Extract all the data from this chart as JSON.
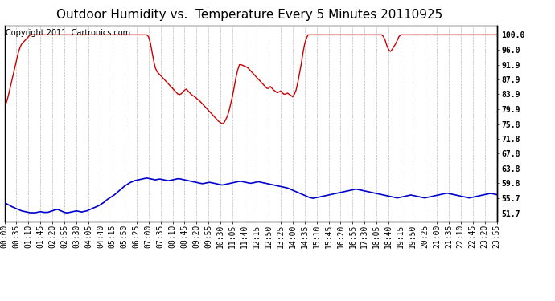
{
  "title": "Outdoor Humidity vs.  Temperature Every 5 Minutes 20110925",
  "copyright": "Copyright 2011  Cartronics.com",
  "yticks": [
    51.7,
    55.7,
    59.8,
    63.8,
    67.8,
    71.8,
    75.8,
    79.9,
    83.9,
    87.9,
    91.9,
    96.0,
    100.0
  ],
  "ytick_labels": [
    "51.7",
    "55.7",
    "59.8",
    "63.8",
    "67.8",
    "71.8",
    "75.8",
    "79.9",
    "83.9",
    "87.9",
    "91.9",
    "96.0",
    "100.0"
  ],
  "ylim_min": 49.5,
  "ylim_max": 102.5,
  "red_color": "#cc0000",
  "blue_color": "#0000cc",
  "bg_color": "#ffffff",
  "grid_color": "#aaaaaa",
  "title_fontsize": 11,
  "copyright_fontsize": 7,
  "tick_fontsize": 7,
  "axis_tick_fontsize": 7,
  "humidity_data": [
    80.0,
    81.5,
    83.0,
    85.0,
    87.0,
    89.0,
    91.0,
    93.0,
    95.0,
    96.5,
    97.5,
    98.0,
    98.5,
    99.0,
    99.5,
    100.0,
    100.0,
    100.0,
    100.0,
    100.0,
    100.0,
    100.0,
    100.0,
    100.0,
    100.0,
    100.0,
    100.0,
    100.0,
    100.0,
    100.0,
    100.0,
    100.0,
    100.0,
    100.0,
    100.0,
    100.0,
    100.0,
    100.0,
    100.0,
    100.0,
    100.0,
    100.0,
    100.0,
    100.0,
    100.0,
    100.0,
    100.0,
    100.0,
    100.0,
    100.0,
    100.0,
    100.0,
    100.0,
    100.0,
    100.0,
    100.0,
    100.0,
    100.0,
    100.0,
    100.0,
    100.0,
    100.0,
    100.0,
    100.0,
    100.0,
    100.0,
    100.0,
    100.0,
    100.0,
    100.0,
    100.0,
    100.0,
    100.0,
    100.0,
    100.0,
    100.0,
    100.0,
    100.0,
    100.0,
    100.0,
    100.0,
    100.0,
    100.0,
    100.0,
    99.5,
    98.0,
    95.5,
    93.0,
    91.0,
    90.0,
    89.5,
    89.0,
    88.5,
    88.0,
    87.5,
    87.0,
    86.5,
    86.0,
    85.5,
    85.0,
    84.5,
    84.0,
    83.8,
    84.0,
    84.5,
    85.0,
    85.3,
    84.8,
    84.3,
    83.8,
    83.5,
    83.2,
    82.8,
    82.4,
    82.0,
    81.5,
    81.0,
    80.5,
    80.0,
    79.5,
    79.0,
    78.5,
    78.0,
    77.5,
    77.0,
    76.5,
    76.2,
    75.9,
    76.2,
    77.0,
    78.0,
    79.5,
    81.5,
    83.5,
    86.0,
    88.5,
    90.5,
    91.9,
    91.9,
    91.7,
    91.5,
    91.3,
    91.0,
    90.5,
    90.0,
    89.5,
    89.0,
    88.5,
    88.0,
    87.5,
    87.0,
    86.5,
    86.0,
    85.5,
    85.5,
    86.0,
    85.5,
    85.0,
    84.7,
    84.3,
    84.5,
    84.8,
    84.3,
    83.9,
    84.0,
    84.2,
    83.9,
    83.6,
    83.2,
    83.9,
    85.0,
    87.0,
    89.5,
    92.0,
    95.0,
    97.5,
    99.0,
    100.0,
    100.0,
    100.0,
    100.0,
    100.0,
    100.0,
    100.0,
    100.0,
    100.0,
    100.0,
    100.0,
    100.0,
    100.0,
    100.0,
    100.0,
    100.0,
    100.0,
    100.0,
    100.0,
    100.0,
    100.0,
    100.0,
    100.0,
    100.0,
    100.0,
    100.0,
    100.0,
    100.0,
    100.0,
    100.0,
    100.0,
    100.0,
    100.0,
    100.0,
    100.0,
    100.0,
    100.0,
    100.0,
    100.0,
    100.0,
    100.0,
    100.0,
    100.0,
    100.0,
    99.5,
    98.5,
    97.0,
    96.0,
    95.5,
    96.0,
    96.8,
    97.5,
    98.5,
    99.5,
    100.0,
    100.0,
    100.0,
    100.0,
    100.0,
    100.0,
    100.0,
    100.0,
    100.0,
    100.0,
    100.0,
    100.0,
    100.0,
    100.0,
    100.0,
    100.0,
    100.0,
    100.0,
    100.0,
    100.0,
    100.0,
    100.0,
    100.0,
    100.0,
    100.0,
    100.0,
    100.0,
    100.0,
    100.0,
    100.0,
    100.0,
    100.0,
    100.0,
    100.0,
    100.0,
    100.0,
    100.0,
    100.0,
    100.0,
    100.0,
    100.0,
    100.0,
    100.0,
    100.0,
    100.0,
    100.0,
    100.0,
    100.0,
    100.0,
    100.0,
    100.0,
    100.0,
    100.0,
    100.0,
    100.0,
    100.0,
    100.0,
    100.0,
    100.0
  ],
  "temp_data": [
    54.5,
    54.3,
    54.0,
    53.8,
    53.5,
    53.3,
    53.1,
    52.9,
    52.7,
    52.5,
    52.3,
    52.2,
    52.1,
    52.0,
    51.9,
    51.8,
    51.8,
    51.8,
    51.8,
    51.9,
    52.0,
    52.1,
    52.0,
    51.9,
    51.9,
    51.9,
    52.0,
    52.2,
    52.3,
    52.5,
    52.6,
    52.7,
    52.5,
    52.3,
    52.1,
    51.9,
    51.8,
    51.8,
    51.9,
    52.0,
    52.1,
    52.2,
    52.3,
    52.2,
    52.1,
    52.0,
    52.1,
    52.2,
    52.3,
    52.5,
    52.7,
    52.9,
    53.1,
    53.3,
    53.5,
    53.7,
    54.0,
    54.3,
    54.6,
    55.0,
    55.4,
    55.7,
    56.0,
    56.3,
    56.6,
    57.0,
    57.4,
    57.8,
    58.2,
    58.6,
    59.0,
    59.3,
    59.6,
    59.9,
    60.1,
    60.3,
    60.5,
    60.6,
    60.7,
    60.8,
    60.9,
    61.0,
    61.1,
    61.2,
    61.1,
    61.0,
    60.9,
    60.8,
    60.7,
    60.8,
    60.9,
    60.9,
    60.8,
    60.7,
    60.6,
    60.5,
    60.5,
    60.6,
    60.7,
    60.8,
    60.9,
    61.0,
    61.0,
    60.9,
    60.8,
    60.7,
    60.6,
    60.5,
    60.4,
    60.3,
    60.2,
    60.1,
    60.0,
    59.9,
    59.8,
    59.7,
    59.7,
    59.8,
    59.9,
    60.0,
    60.0,
    59.9,
    59.8,
    59.7,
    59.6,
    59.5,
    59.4,
    59.3,
    59.4,
    59.5,
    59.6,
    59.7,
    59.8,
    59.9,
    60.0,
    60.1,
    60.2,
    60.3,
    60.3,
    60.2,
    60.1,
    60.0,
    59.9,
    59.8,
    59.8,
    59.9,
    60.0,
    60.1,
    60.2,
    60.1,
    60.0,
    59.9,
    59.8,
    59.7,
    59.6,
    59.5,
    59.4,
    59.3,
    59.2,
    59.1,
    59.0,
    58.9,
    58.8,
    58.7,
    58.6,
    58.5,
    58.3,
    58.1,
    57.9,
    57.7,
    57.5,
    57.3,
    57.1,
    56.9,
    56.7,
    56.5,
    56.3,
    56.1,
    55.9,
    55.8,
    55.7,
    55.8,
    55.9,
    56.0,
    56.1,
    56.2,
    56.3,
    56.4,
    56.5,
    56.6,
    56.7,
    56.8,
    56.9,
    57.0,
    57.1,
    57.2,
    57.3,
    57.4,
    57.5,
    57.6,
    57.7,
    57.8,
    57.9,
    58.0,
    58.1,
    58.2,
    58.1,
    58.0,
    57.9,
    57.8,
    57.7,
    57.6,
    57.5,
    57.4,
    57.3,
    57.2,
    57.1,
    57.0,
    56.9,
    56.8,
    56.7,
    56.6,
    56.5,
    56.4,
    56.3,
    56.2,
    56.1,
    56.0,
    55.9,
    55.8,
    55.9,
    56.0,
    56.1,
    56.2,
    56.3,
    56.4,
    56.5,
    56.6,
    56.5,
    56.4,
    56.3,
    56.2,
    56.1,
    56.0,
    55.9,
    55.8,
    55.9,
    56.0,
    56.1,
    56.2,
    56.3,
    56.4,
    56.5,
    56.6,
    56.7,
    56.8,
    56.9,
    57.0,
    57.1,
    57.0,
    56.9,
    56.8,
    56.7,
    56.6,
    56.5,
    56.4,
    56.3,
    56.2,
    56.1,
    56.0,
    55.9,
    55.8,
    55.9,
    56.0,
    56.1,
    56.2,
    56.3,
    56.4,
    56.5,
    56.6,
    56.7,
    56.8,
    56.9,
    57.0,
    57.0,
    56.9,
    56.8,
    56.7,
    56.6,
    56.5
  ]
}
